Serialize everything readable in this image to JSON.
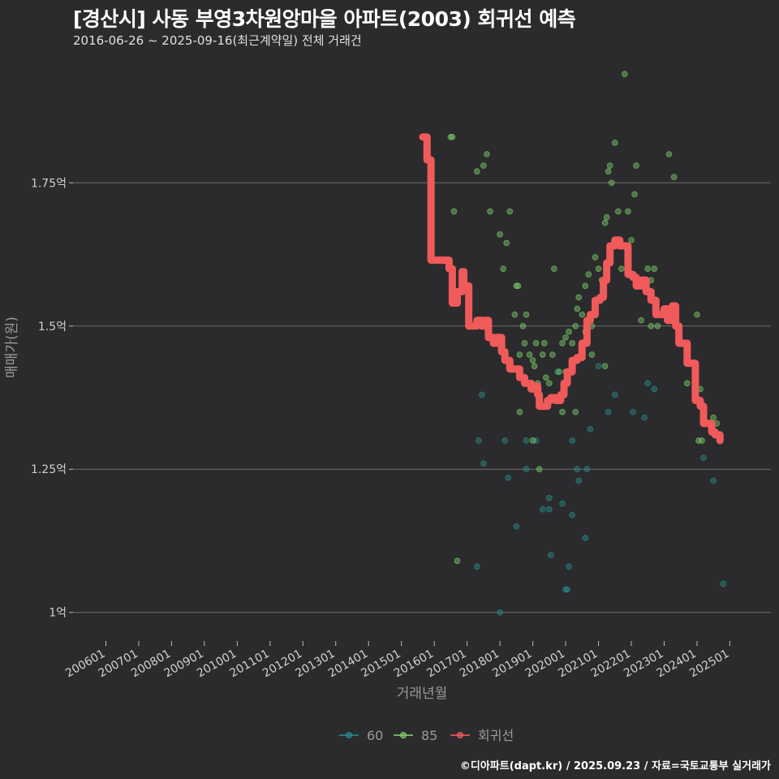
{
  "header": {
    "title": "[경산시] 사동 부영3차원앙마을 아파트(2003) 회귀선 예측",
    "subtitle": "2016-06-26 ~ 2025-09-16(최근계약일) 전체 거래건"
  },
  "caption": "©디아파트(dapt.kr) / 2025.09.23 / 자료=국토교통부 실거래가",
  "colors": {
    "background": "#2b2b2d",
    "grid": "#6e6e6e",
    "series_60": "#2a8c8a",
    "series_85": "#7dcf6a",
    "regression": "#f05a5a"
  },
  "chart_data": {
    "type": "scatter",
    "xlabel": "거래년월",
    "ylabel": "매매가(원)",
    "ylim": [
      0.95,
      1.97
    ],
    "yticks": [
      1.0,
      1.25,
      1.5,
      1.75
    ],
    "ytick_labels": [
      "1억",
      "1.25억",
      "1.5억",
      "1.75억"
    ],
    "xlim": [
      2005.0,
      2026.25
    ],
    "xticks": [
      2006,
      2007,
      2008,
      2009,
      2010,
      2011,
      2012,
      2013,
      2014,
      2015,
      2016,
      2017,
      2018,
      2019,
      2020,
      2021,
      2022,
      2023,
      2024,
      2025
    ],
    "xtick_labels": [
      "200601",
      "200701",
      "200801",
      "200901",
      "201001",
      "201101",
      "201201",
      "201301",
      "201401",
      "201501",
      "201601",
      "201701",
      "201801",
      "201901",
      "202001",
      "202101",
      "202201",
      "202301",
      "202401",
      "202501"
    ],
    "grid": "horizontal",
    "legend_position": "bottom",
    "series": [
      {
        "name": "60",
        "points": [
          [
            2017.35,
            1.3
          ],
          [
            2017.45,
            1.38
          ],
          [
            2017.5,
            1.26
          ],
          [
            2018.0,
            1.0
          ],
          [
            2018.15,
            1.3
          ],
          [
            2018.25,
            1.235
          ],
          [
            2018.5,
            1.15
          ],
          [
            2018.8,
            1.3
          ],
          [
            2019.3,
            1.18
          ],
          [
            2019.5,
            1.2
          ],
          [
            2019.55,
            1.1
          ],
          [
            2019.9,
            1.19
          ],
          [
            2020.0,
            1.04
          ],
          [
            2020.05,
            1.04
          ],
          [
            2020.2,
            1.17
          ],
          [
            2020.35,
            1.25
          ],
          [
            2020.6,
            1.13
          ],
          [
            2020.75,
            1.32
          ],
          [
            2021.3,
            1.35
          ],
          [
            2021.5,
            1.38
          ],
          [
            2022.05,
            1.35
          ],
          [
            2022.4,
            1.34
          ],
          [
            2022.5,
            1.4
          ],
          [
            2022.7,
            1.39
          ],
          [
            2024.2,
            1.27
          ],
          [
            2024.5,
            1.23
          ],
          [
            2024.8,
            1.05
          ],
          [
            2019.1,
            1.3
          ],
          [
            2020.2,
            1.3
          ],
          [
            2020.65,
            1.25
          ],
          [
            2018.8,
            1.25
          ],
          [
            2019.75,
            1.42
          ],
          [
            2020.4,
            1.23
          ],
          [
            2019.5,
            1.18
          ],
          [
            2020.1,
            1.08
          ],
          [
            2021.0,
            1.43
          ],
          [
            2017.3,
            1.08
          ]
        ]
      },
      {
        "name": "85",
        "points": [
          [
            2016.5,
            1.83
          ],
          [
            2016.55,
            1.83
          ],
          [
            2016.6,
            1.7
          ],
          [
            2016.7,
            1.09
          ],
          [
            2017.3,
            1.77
          ],
          [
            2017.5,
            1.78
          ],
          [
            2017.6,
            1.8
          ],
          [
            2017.7,
            1.7
          ],
          [
            2018.0,
            1.66
          ],
          [
            2018.1,
            1.6
          ],
          [
            2018.2,
            1.645
          ],
          [
            2018.3,
            1.7
          ],
          [
            2018.45,
            1.52
          ],
          [
            2018.5,
            1.57
          ],
          [
            2018.55,
            1.57
          ],
          [
            2018.6,
            1.45
          ],
          [
            2018.7,
            1.5
          ],
          [
            2018.75,
            1.47
          ],
          [
            2018.8,
            1.52
          ],
          [
            2018.9,
            1.45
          ],
          [
            2019.0,
            1.44
          ],
          [
            2019.05,
            1.43
          ],
          [
            2019.1,
            1.47
          ],
          [
            2019.2,
            1.25
          ],
          [
            2019.3,
            1.45
          ],
          [
            2019.4,
            1.41
          ],
          [
            2019.5,
            1.4
          ],
          [
            2019.65,
            1.6
          ],
          [
            2019.8,
            1.42
          ],
          [
            2019.9,
            1.47
          ],
          [
            2020.0,
            1.48
          ],
          [
            2020.1,
            1.49
          ],
          [
            2020.2,
            1.47
          ],
          [
            2020.3,
            1.5
          ],
          [
            2020.35,
            1.53
          ],
          [
            2020.4,
            1.55
          ],
          [
            2020.5,
            1.52
          ],
          [
            2020.6,
            1.57
          ],
          [
            2020.7,
            1.59
          ],
          [
            2020.8,
            1.5
          ],
          [
            2020.9,
            1.62
          ],
          [
            2021.0,
            1.6
          ],
          [
            2021.1,
            1.58
          ],
          [
            2021.2,
            1.68
          ],
          [
            2021.25,
            1.69
          ],
          [
            2021.3,
            1.77
          ],
          [
            2021.35,
            1.78
          ],
          [
            2021.4,
            1.75
          ],
          [
            2021.5,
            1.82
          ],
          [
            2021.6,
            1.7
          ],
          [
            2021.7,
            1.6
          ],
          [
            2021.8,
            1.94
          ],
          [
            2021.9,
            1.7
          ],
          [
            2022.0,
            1.65
          ],
          [
            2022.1,
            1.73
          ],
          [
            2022.15,
            1.78
          ],
          [
            2022.3,
            1.51
          ],
          [
            2022.5,
            1.6
          ],
          [
            2022.6,
            1.58
          ],
          [
            2022.7,
            1.6
          ],
          [
            2023.0,
            1.53
          ],
          [
            2023.15,
            1.8
          ],
          [
            2023.3,
            1.76
          ],
          [
            2023.5,
            1.47
          ],
          [
            2023.7,
            1.4
          ],
          [
            2024.0,
            1.52
          ],
          [
            2024.05,
            1.3
          ],
          [
            2024.1,
            1.39
          ],
          [
            2024.15,
            1.3
          ],
          [
            2024.5,
            1.34
          ],
          [
            2024.6,
            1.33
          ],
          [
            2023.6,
            1.47
          ],
          [
            2022.6,
            1.5
          ],
          [
            2020.6,
            1.49
          ],
          [
            2021.2,
            1.43
          ],
          [
            2020.0,
            1.42
          ],
          [
            2019.9,
            1.35
          ],
          [
            2020.8,
            1.45
          ],
          [
            2019.35,
            1.47
          ],
          [
            2019.6,
            1.45
          ],
          [
            2018.6,
            1.35
          ],
          [
            2019.0,
            1.3
          ],
          [
            2019.15,
            1.4
          ],
          [
            2020.3,
            1.35
          ],
          [
            2022.8,
            1.5
          ]
        ]
      },
      {
        "name": "회귀선",
        "type": "step-line",
        "points": [
          [
            2015.65,
            1.83
          ],
          [
            2015.78,
            1.79
          ],
          [
            2015.85,
            1.79
          ],
          [
            2015.9,
            1.615
          ],
          [
            2016.35,
            1.615
          ],
          [
            2016.45,
            1.6
          ],
          [
            2016.55,
            1.54
          ],
          [
            2016.7,
            1.56
          ],
          [
            2016.85,
            1.595
          ],
          [
            2016.9,
            1.57
          ],
          [
            2017.05,
            1.5
          ],
          [
            2017.2,
            1.5
          ],
          [
            2017.3,
            1.51
          ],
          [
            2017.45,
            1.5
          ],
          [
            2017.55,
            1.51
          ],
          [
            2017.65,
            1.48
          ],
          [
            2017.8,
            1.47
          ],
          [
            2017.9,
            1.48
          ],
          [
            2018.05,
            1.455
          ],
          [
            2018.15,
            1.44
          ],
          [
            2018.3,
            1.425
          ],
          [
            2018.45,
            1.425
          ],
          [
            2018.6,
            1.41
          ],
          [
            2018.75,
            1.4
          ],
          [
            2018.95,
            1.39
          ],
          [
            2019.05,
            1.395
          ],
          [
            2019.15,
            1.38
          ],
          [
            2019.2,
            1.36
          ],
          [
            2019.35,
            1.36
          ],
          [
            2019.45,
            1.37
          ],
          [
            2019.55,
            1.375
          ],
          [
            2019.7,
            1.37
          ],
          [
            2019.85,
            1.38
          ],
          [
            2019.95,
            1.4
          ],
          [
            2020.05,
            1.42
          ],
          [
            2020.2,
            1.44
          ],
          [
            2020.35,
            1.445
          ],
          [
            2020.5,
            1.47
          ],
          [
            2020.65,
            1.51
          ],
          [
            2020.75,
            1.52
          ],
          [
            2020.9,
            1.545
          ],
          [
            2021.05,
            1.55
          ],
          [
            2021.15,
            1.58
          ],
          [
            2021.25,
            1.61
          ],
          [
            2021.35,
            1.64
          ],
          [
            2021.5,
            1.65
          ],
          [
            2021.65,
            1.64
          ],
          [
            2021.8,
            1.64
          ],
          [
            2021.9,
            1.59
          ],
          [
            2022.05,
            1.585
          ],
          [
            2022.15,
            1.57
          ],
          [
            2022.3,
            1.58
          ],
          [
            2022.45,
            1.56
          ],
          [
            2022.6,
            1.545
          ],
          [
            2022.75,
            1.52
          ],
          [
            2022.9,
            1.52
          ],
          [
            2023.0,
            1.53
          ],
          [
            2023.1,
            1.51
          ],
          [
            2023.25,
            1.535
          ],
          [
            2023.35,
            1.5
          ],
          [
            2023.45,
            1.47
          ],
          [
            2023.6,
            1.47
          ],
          [
            2023.7,
            1.435
          ],
          [
            2023.85,
            1.435
          ],
          [
            2023.95,
            1.37
          ],
          [
            2024.1,
            1.36
          ],
          [
            2024.2,
            1.33
          ],
          [
            2024.35,
            1.33
          ],
          [
            2024.45,
            1.315
          ],
          [
            2024.55,
            1.31
          ],
          [
            2024.7,
            1.3
          ]
        ]
      }
    ]
  }
}
